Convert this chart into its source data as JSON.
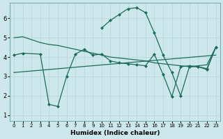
{
  "bg_color": "#cce8ec",
  "line_color": "#1d6b5e",
  "grid_color": "#b8d4d8",
  "xlabel": "Humidex (Indice chaleur)",
  "ylim": [
    0.7,
    6.8
  ],
  "xlim": [
    -0.5,
    23.5
  ],
  "yticks": [
    1,
    2,
    3,
    4,
    5,
    6
  ],
  "xticks": [
    0,
    1,
    2,
    3,
    4,
    5,
    6,
    7,
    8,
    9,
    10,
    11,
    12,
    13,
    14,
    15,
    16,
    17,
    18,
    19,
    20,
    21,
    22,
    23
  ],
  "series": [
    {
      "x": [
        0,
        1,
        2,
        3,
        4,
        5,
        6,
        7,
        8,
        9,
        10,
        11,
        12,
        13,
        14,
        15,
        16,
        17,
        18,
        19,
        20,
        21,
        22,
        23
      ],
      "y": [
        5.0,
        5.05,
        4.9,
        4.75,
        4.65,
        4.6,
        4.5,
        4.4,
        4.3,
        4.2,
        4.1,
        4.0,
        3.95,
        3.9,
        3.85,
        3.8,
        3.7,
        3.65,
        3.6,
        3.55,
        3.5,
        3.55,
        3.6,
        4.5
      ],
      "markers": false
    },
    {
      "x": [
        0,
        1,
        3,
        4,
        5,
        6,
        7,
        8,
        9,
        10,
        11,
        12,
        13,
        14,
        15,
        16,
        17,
        18,
        19,
        20,
        21,
        22,
        23
      ],
      "y": [
        4.1,
        4.2,
        4.15,
        1.55,
        1.45,
        3.0,
        4.15,
        4.4,
        4.1,
        4.15,
        3.8,
        3.7,
        3.65,
        3.6,
        3.55,
        4.15,
        3.1,
        1.95,
        3.5,
        3.55,
        3.5,
        3.4,
        4.5
      ],
      "markers": true
    },
    {
      "x": [
        0,
        23
      ],
      "y": [
        3.2,
        4.1
      ],
      "markers": false
    },
    {
      "x": [
        10,
        11,
        12,
        13,
        14,
        15,
        16,
        17,
        18,
        19,
        20,
        21,
        22,
        23
      ],
      "y": [
        5.5,
        5.9,
        6.2,
        6.5,
        6.55,
        6.3,
        5.25,
        4.1,
        3.2,
        2.0,
        3.5,
        3.5,
        3.35,
        4.5
      ],
      "markers": true
    }
  ]
}
